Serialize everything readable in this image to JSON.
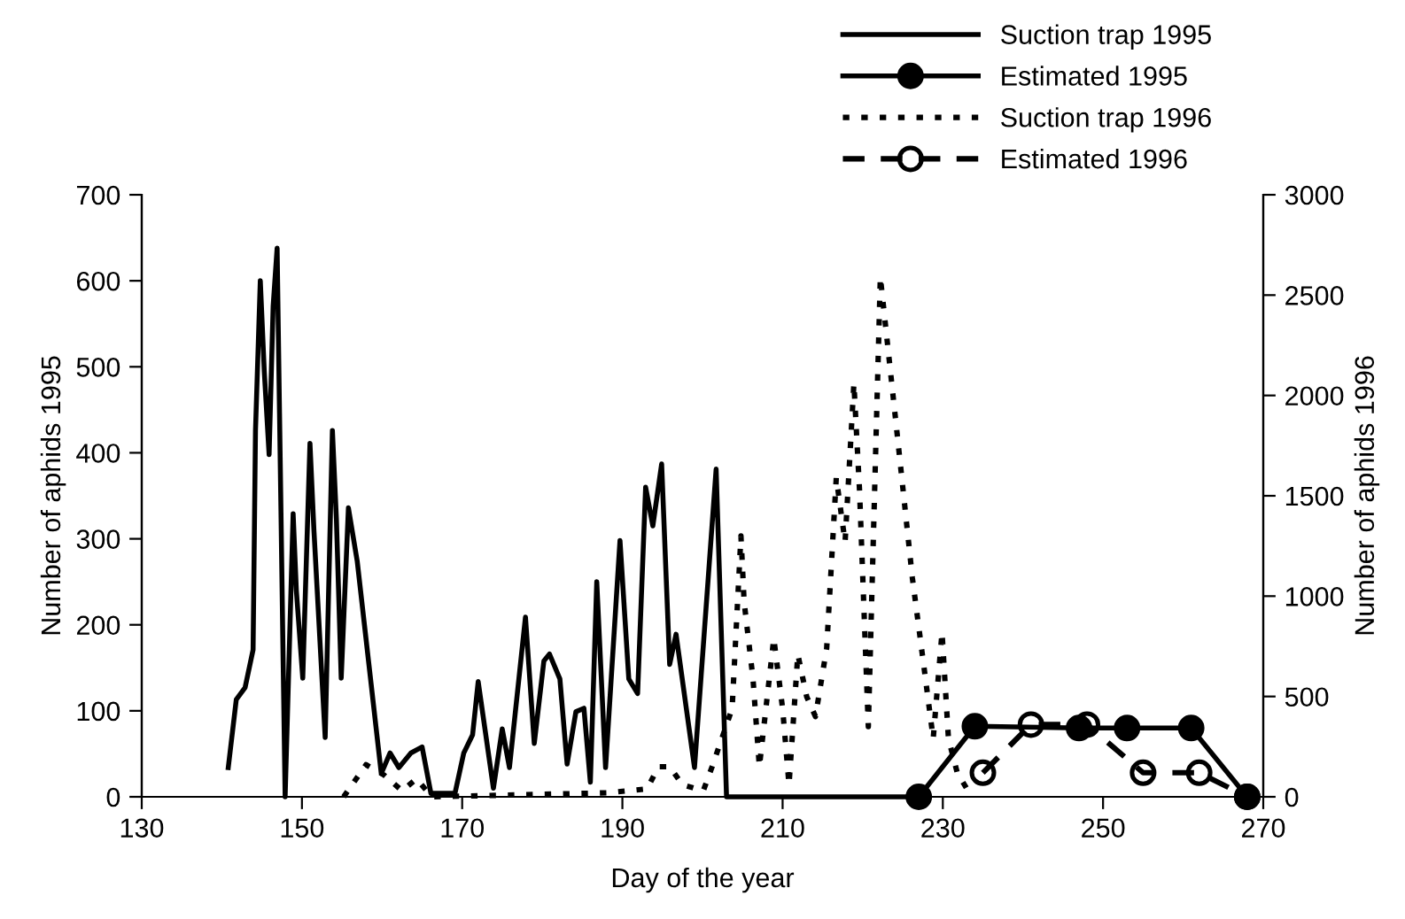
{
  "chart_data": {
    "type": "line",
    "xlabel": "Day of the year",
    "ylabel": "Number of aphids 1995",
    "y2label": "Number of aphids 1996",
    "xlim": [
      130,
      270
    ],
    "xticks": [
      130,
      150,
      170,
      190,
      210,
      230,
      250,
      270
    ],
    "ylim": [
      0,
      700
    ],
    "yticks": [
      0,
      100,
      200,
      300,
      400,
      500,
      600,
      700
    ],
    "y2lim": [
      0,
      3000
    ],
    "y2ticks": [
      0,
      500,
      1000,
      1500,
      2000,
      2500,
      3000
    ],
    "legend": "top right",
    "grid": false,
    "series": [
      {
        "name": "Suction trap 1995",
        "color": "#000000",
        "line_style": "solid",
        "marker": "none",
        "x": [
          140.8,
          141.8,
          142.9,
          143.9,
          144.2,
          144.8,
          145.3,
          145.9,
          146.4,
          146.9,
          147.2,
          147.9,
          148.9,
          149.3,
          150.1,
          151.0,
          151.5,
          152.9,
          153.8,
          154.3,
          154.9,
          155.8,
          156.9,
          159.9,
          161.0,
          162.1,
          163.6,
          165.0,
          166.1,
          169.1,
          170.2,
          171.3,
          172.0,
          173.9,
          175.0,
          175.9,
          177.9,
          179.0,
          180.2,
          180.9,
          182.2,
          183.1,
          184.2,
          185.2,
          186.0,
          186.8,
          187.9,
          189.7,
          190.8,
          191.9,
          192.9,
          193.8,
          194.9,
          195.9,
          196.7,
          199.0,
          201.7,
          203.0,
          227
        ],
        "values": [
          34,
          113,
          127,
          171,
          426,
          600,
          494,
          398,
          570,
          638,
          446,
          0,
          329,
          240,
          138,
          411,
          309,
          69,
          426,
          323,
          138,
          336,
          274,
          27,
          51,
          34,
          51,
          58,
          4,
          4,
          51,
          72,
          134,
          10,
          79,
          34,
          209,
          62,
          158,
          166,
          137,
          38,
          99,
          103,
          17,
          250,
          34,
          298,
          137,
          120,
          360,
          315,
          387,
          154,
          189,
          34,
          381,
          0,
          0
        ]
      },
      {
        "name": "Estimated 1995",
        "color": "#000000",
        "line_style": "solid",
        "marker": "circle",
        "x": [
          227,
          234,
          247,
          253,
          261,
          268
        ],
        "values": [
          0,
          82,
          80,
          80,
          80,
          0
        ]
      },
      {
        "name": "Suction trap 1996",
        "color": "#000000",
        "line_style": "dotted",
        "marker": "none",
        "axis": "y2",
        "x": [
          155.2,
          158.0,
          160.2,
          162.5,
          164.3,
          166.2,
          188.2,
          193.1,
          194.5,
          195.9,
          197.5,
          200.1,
          201.2,
          203.7,
          204.8,
          205.2,
          206.3,
          207.1,
          208.9,
          210.0,
          210.8,
          211.9,
          213.0,
          214.1,
          215.5,
          216.7,
          217.8,
          218.9,
          219.6,
          220.7,
          222.2,
          224.4,
          226.2,
          227.7,
          228.8,
          229.9,
          230.7,
          231.8,
          233.3
        ],
        "values": [
          0,
          160,
          110,
          30,
          90,
          0,
          20,
          40,
          150,
          150,
          60,
          30,
          150,
          440,
          1300,
          970,
          590,
          150,
          790,
          440,
          60,
          710,
          500,
          400,
          740,
          1590,
          1270,
          2060,
          1530,
          350,
          2590,
          1770,
          1090,
          630,
          290,
          820,
          290,
          120,
          20
        ]
      },
      {
        "name": "Estimated 1996",
        "color": "#000000",
        "line_style": "dashed",
        "marker": "circle",
        "axis": "y2",
        "x": [
          235,
          241,
          248,
          255,
          262,
          268
        ],
        "values": [
          120,
          360,
          360,
          120,
          120,
          0
        ]
      }
    ]
  }
}
